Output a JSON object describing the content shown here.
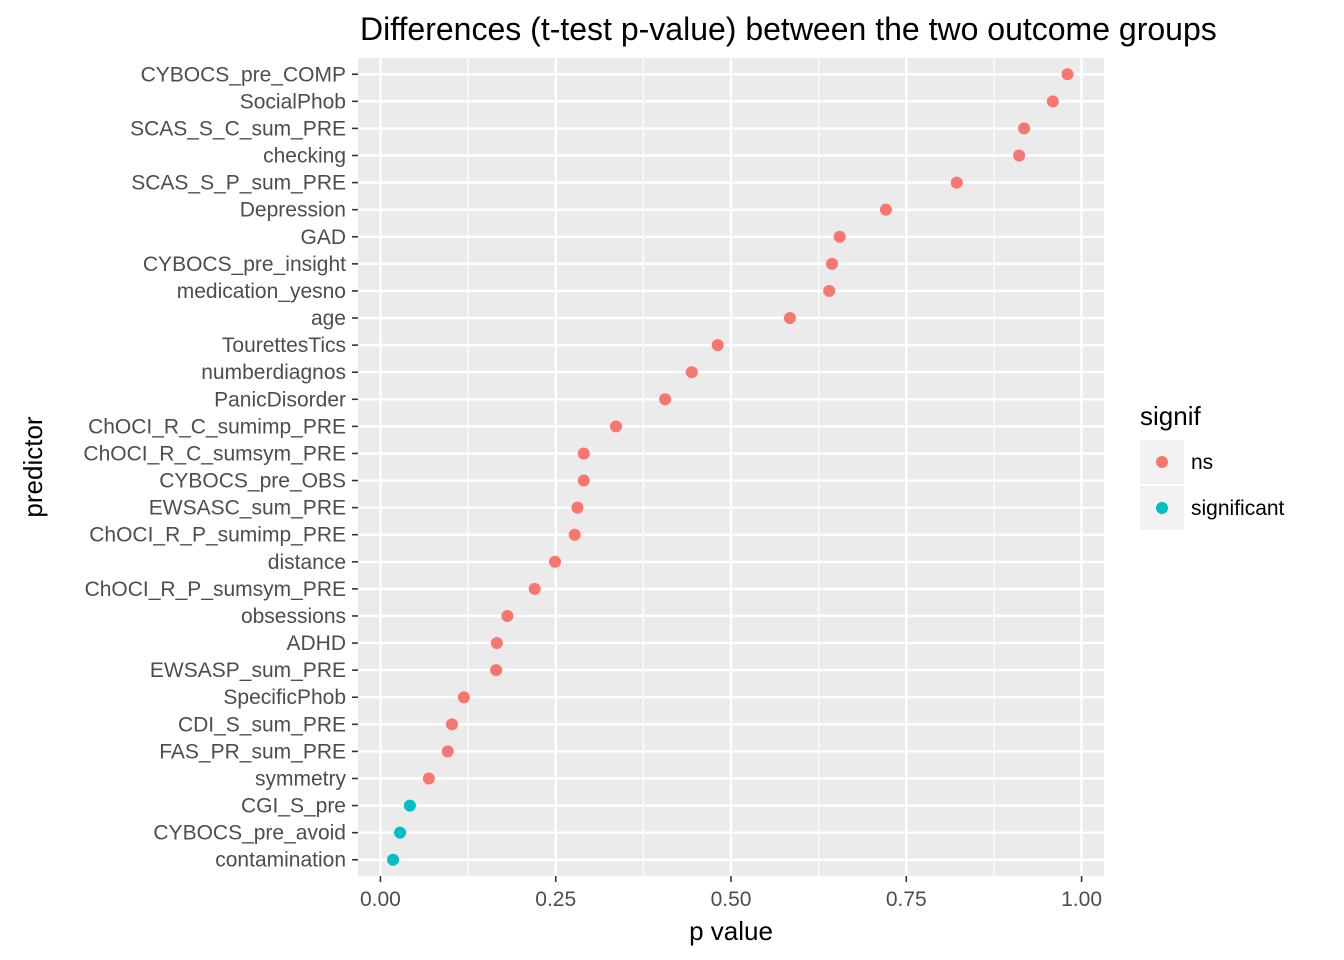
{
  "chart_data": {
    "type": "scatter",
    "title": "Differences (t-test p-value) between the two outcome groups",
    "xlabel": "p value",
    "ylabel": "predictor",
    "xlim": [
      -0.032,
      1.032
    ],
    "xticks": [
      0.0,
      0.25,
      0.5,
      0.75,
      1.0
    ],
    "xtick_labels": [
      "0.00",
      "0.25",
      "0.50",
      "0.75",
      "1.00"
    ],
    "grid": true,
    "legend": {
      "title": "signif",
      "placement": "right",
      "entries": [
        {
          "name": "ns",
          "color": "#F8766D"
        },
        {
          "name": "significant",
          "color": "#00BFC4"
        }
      ]
    },
    "points": [
      {
        "predictor": "CYBOCS_pre_COMP",
        "p": 0.98,
        "signif": "ns"
      },
      {
        "predictor": "SocialPhob",
        "p": 0.959,
        "signif": "ns"
      },
      {
        "predictor": "SCAS_S_C_sum_PRE",
        "p": 0.918,
        "signif": "ns"
      },
      {
        "predictor": "checking",
        "p": 0.911,
        "signif": "ns"
      },
      {
        "predictor": "SCAS_S_P_sum_PRE",
        "p": 0.822,
        "signif": "ns"
      },
      {
        "predictor": "Depression",
        "p": 0.721,
        "signif": "ns"
      },
      {
        "predictor": "GAD",
        "p": 0.655,
        "signif": "ns"
      },
      {
        "predictor": "CYBOCS_pre_insight",
        "p": 0.644,
        "signif": "ns"
      },
      {
        "predictor": "medication_yesno",
        "p": 0.64,
        "signif": "ns"
      },
      {
        "predictor": "age",
        "p": 0.584,
        "signif": "ns"
      },
      {
        "predictor": "TourettesTics",
        "p": 0.481,
        "signif": "ns"
      },
      {
        "predictor": "numberdiagnos",
        "p": 0.444,
        "signif": "ns"
      },
      {
        "predictor": "PanicDisorder",
        "p": 0.406,
        "signif": "ns"
      },
      {
        "predictor": "ChOCI_R_C_sumimp_PRE",
        "p": 0.336,
        "signif": "ns"
      },
      {
        "predictor": "ChOCI_R_C_sumsym_PRE",
        "p": 0.29,
        "signif": "ns"
      },
      {
        "predictor": "CYBOCS_pre_OBS",
        "p": 0.29,
        "signif": "ns"
      },
      {
        "predictor": "EWSASC_sum_PRE",
        "p": 0.281,
        "signif": "ns"
      },
      {
        "predictor": "ChOCI_R_P_sumimp_PRE",
        "p": 0.277,
        "signif": "ns"
      },
      {
        "predictor": "distance",
        "p": 0.249,
        "signif": "ns"
      },
      {
        "predictor": "ChOCI_R_P_sumsym_PRE",
        "p": 0.22,
        "signif": "ns"
      },
      {
        "predictor": "obsessions",
        "p": 0.181,
        "signif": "ns"
      },
      {
        "predictor": "ADHD",
        "p": 0.166,
        "signif": "ns"
      },
      {
        "predictor": "EWSASP_sum_PRE",
        "p": 0.165,
        "signif": "ns"
      },
      {
        "predictor": "SpecificPhob",
        "p": 0.119,
        "signif": "ns"
      },
      {
        "predictor": "CDI_S_sum_PRE",
        "p": 0.102,
        "signif": "ns"
      },
      {
        "predictor": "FAS_PR_sum_PRE",
        "p": 0.096,
        "signif": "ns"
      },
      {
        "predictor": "symmetry",
        "p": 0.069,
        "signif": "ns"
      },
      {
        "predictor": "CGI_S_pre",
        "p": 0.042,
        "signif": "significant"
      },
      {
        "predictor": "CYBOCS_pre_avoid",
        "p": 0.028,
        "signif": "significant"
      },
      {
        "predictor": "contamination",
        "p": 0.018,
        "signif": "significant"
      }
    ]
  }
}
